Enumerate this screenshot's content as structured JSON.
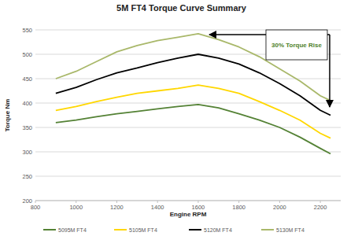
{
  "chart_data": {
    "type": "line",
    "title": "5M FT4 Torque Curve Summary",
    "x_label": "Engine RPM",
    "y_label": "Torque Nm",
    "annotation": "30% Torque Rise",
    "x": [
      900,
      1000,
      1100,
      1200,
      1300,
      1400,
      1500,
      1600,
      1700,
      1800,
      1900,
      2000,
      2100,
      2200,
      2250
    ],
    "series": [
      {
        "name": "5095M FT4",
        "color": "#548235",
        "values": [
          360,
          365,
          372,
          378,
          383,
          388,
          393,
          397,
          390,
          378,
          365,
          350,
          330,
          307,
          296
        ]
      },
      {
        "name": "5105M FT4",
        "color": "#ffd700",
        "values": [
          385,
          393,
          403,
          412,
          420,
          425,
          430,
          437,
          430,
          420,
          403,
          385,
          365,
          338,
          328
        ]
      },
      {
        "name": "5120M FT4",
        "color": "#000000",
        "values": [
          420,
          432,
          448,
          462,
          472,
          483,
          492,
          500,
          492,
          480,
          462,
          440,
          415,
          385,
          375
        ]
      },
      {
        "name": "5130M FT4",
        "color": "#a9b86a",
        "values": [
          450,
          465,
          485,
          505,
          518,
          528,
          535,
          542,
          530,
          515,
          495,
          470,
          445,
          415,
          405
        ]
      }
    ],
    "xlim": [
      800,
      2300
    ],
    "xticks": [
      800,
      1000,
      1200,
      1400,
      1600,
      1800,
      2000,
      2200
    ],
    "ylim": [
      200,
      550
    ],
    "yticks": [
      200,
      250,
      300,
      350,
      400,
      450,
      500,
      550
    ],
    "grid": true,
    "legend": "bottom"
  }
}
